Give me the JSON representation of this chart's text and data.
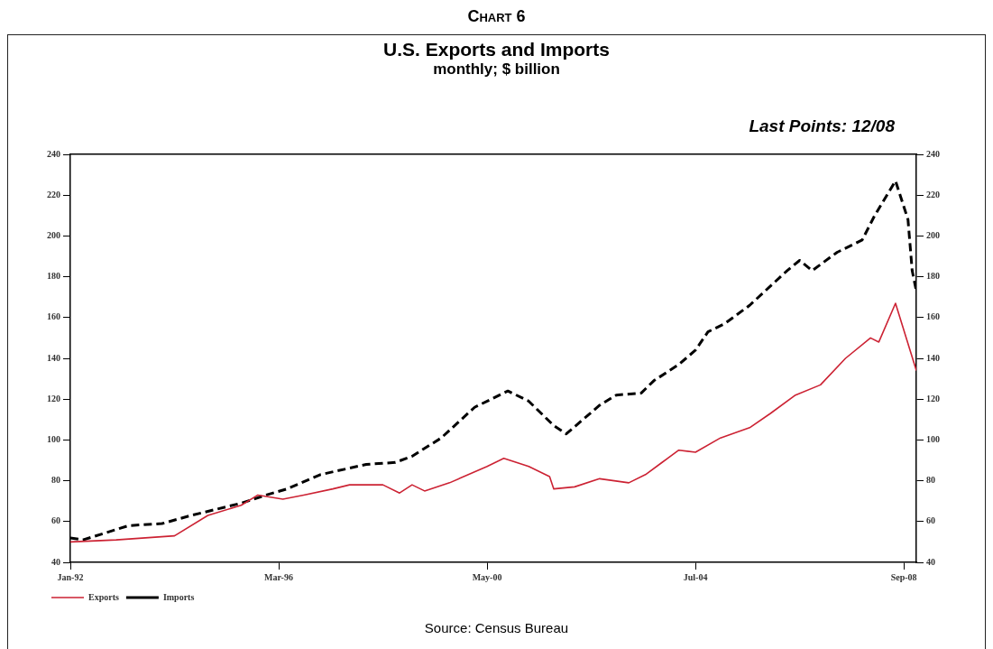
{
  "chart_data": {
    "type": "line",
    "title": "U.S. Exports and Imports",
    "subtitle": "monthly; $ billion",
    "annotations": [
      "Chart 6",
      "Last Points: 12/08",
      "Source:  Census Bureau"
    ],
    "xlim": [
      "1992-01",
      "2008-12"
    ],
    "xticks": [
      {
        "value": "1992-01",
        "label": "Jan-92"
      },
      {
        "value": "1996-03",
        "label": "Mar-96"
      },
      {
        "value": "2000-05",
        "label": "May-00"
      },
      {
        "value": "2004-07",
        "label": "Jul-04"
      },
      {
        "value": "2008-09",
        "label": "Sep-08"
      }
    ],
    "ylim": [
      40,
      240
    ],
    "yticks": [
      40,
      60,
      80,
      100,
      120,
      140,
      160,
      180,
      200,
      220,
      240
    ],
    "y2lim": [
      40,
      240
    ],
    "y2ticks": [
      40,
      60,
      80,
      100,
      120,
      140,
      160,
      180,
      200,
      220,
      240
    ],
    "grid": false,
    "legend": "bottom left",
    "series": [
      {
        "name": "Exports",
        "color": "#cc2233",
        "line_style": "solid",
        "x": [
          "1992-01",
          "1992-12",
          "1994-02",
          "1994-10",
          "1995-06",
          "1995-10",
          "1996-04",
          "1996-09",
          "1997-04",
          "1997-08",
          "1998-04",
          "1998-08",
          "1998-11",
          "1999-02",
          "1999-08",
          "2000-05",
          "2000-09",
          "2001-03",
          "2001-08",
          "2001-09",
          "2002-02",
          "2002-08",
          "2003-03",
          "2003-07",
          "2003-11",
          "2004-03",
          "2004-07",
          "2005-01",
          "2005-08",
          "2006-01",
          "2006-07",
          "2007-01",
          "2007-07",
          "2008-01",
          "2008-03",
          "2008-07",
          "2008-12"
        ],
        "values": [
          50,
          51,
          53,
          63,
          68,
          73,
          71,
          73,
          76,
          78,
          78,
          74,
          78,
          75,
          79,
          87,
          91,
          87,
          82,
          76,
          77,
          81,
          79,
          83,
          89,
          95,
          94,
          101,
          106,
          113,
          122,
          127,
          140,
          150,
          148,
          167,
          134
        ]
      },
      {
        "name": "Imports",
        "color": "#000000",
        "line_style": "dashed",
        "x": [
          "1992-01",
          "1992-04",
          "1993-03",
          "1993-11",
          "1994-06",
          "1995-06",
          "1995-12",
          "1996-05",
          "1997-01",
          "1997-12",
          "1998-07",
          "1998-11",
          "1999-06",
          "2000-02",
          "2000-10",
          "2001-03",
          "2001-09",
          "2001-12",
          "2002-08",
          "2002-12",
          "2003-06",
          "2003-09",
          "2004-03",
          "2004-07",
          "2004-10",
          "2005-02",
          "2005-08",
          "2006-05",
          "2006-08",
          "2006-11",
          "2007-05",
          "2007-11",
          "2008-02",
          "2008-07",
          "2008-10",
          "2008-11",
          "2008-12"
        ],
        "values": [
          52,
          51,
          58,
          59,
          63,
          69,
          73,
          76,
          83,
          88,
          89,
          92,
          101,
          116,
          124,
          119,
          107,
          103,
          117,
          122,
          123,
          129,
          137,
          144,
          153,
          157,
          166,
          183,
          188,
          183,
          192,
          198,
          210,
          227,
          208,
          183,
          173
        ]
      }
    ]
  }
}
